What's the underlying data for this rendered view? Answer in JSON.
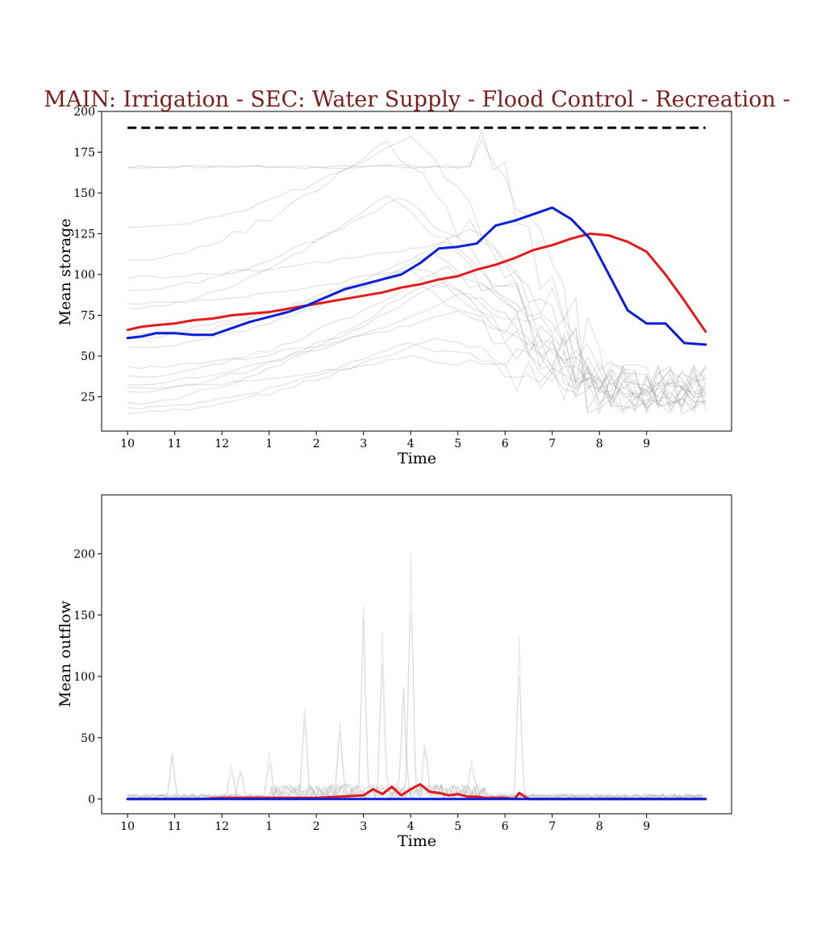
{
  "figure": {
    "title": "MAIN: Irrigation - SEC: Water Supply - Flood Control - Recreation -"
  },
  "chart_data": [
    {
      "type": "line",
      "xlabel": "Time",
      "ylabel": "Mean storage",
      "categories": [
        "10",
        "11",
        "12",
        "1",
        "2",
        "3",
        "4",
        "5",
        "6",
        "7",
        "8",
        "9"
      ],
      "xlim": [
        -0.55,
        12.8
      ],
      "ylim": [
        4,
        200
      ],
      "yticks": [
        25,
        50,
        75,
        100,
        125,
        150,
        175,
        200
      ],
      "grid": false,
      "legend": "none",
      "reference_line": {
        "value": 190,
        "x": [
          0,
          12.25
        ],
        "color": "#000000",
        "style": "dashed"
      },
      "series": [
        {
          "color": "#e41a1c",
          "x": [
            0,
            0.3,
            0.6,
            1.0,
            1.4,
            1.8,
            2.2,
            2.6,
            3.0,
            3.4,
            3.8,
            4.2,
            4.6,
            5.0,
            5.4,
            5.8,
            6.2,
            6.6,
            7.0,
            7.4,
            7.8,
            8.2,
            8.6,
            9.0,
            9.4,
            9.8,
            10.2,
            10.6,
            11.0,
            11.4,
            11.8,
            12.25
          ],
          "values": [
            66,
            68,
            69,
            70,
            72,
            73,
            75,
            76,
            77,
            79,
            81,
            83,
            85,
            87,
            89,
            92,
            94,
            97,
            99,
            103,
            106,
            110,
            115,
            118,
            122,
            125,
            124,
            120,
            114,
            100,
            84,
            65
          ]
        },
        {
          "color": "#0a1fd8",
          "x": [
            0,
            0.3,
            0.6,
            1.0,
            1.4,
            1.8,
            2.2,
            2.6,
            3.0,
            3.4,
            3.8,
            4.2,
            4.6,
            5.0,
            5.4,
            5.8,
            6.2,
            6.6,
            7.0,
            7.4,
            7.8,
            8.2,
            8.6,
            9.0,
            9.4,
            9.8,
            10.2,
            10.6,
            11.0,
            11.4,
            11.8,
            12.25
          ],
          "values": [
            61,
            62,
            64,
            64,
            63,
            63,
            67,
            71,
            74,
            77,
            81,
            86,
            91,
            94,
            97,
            100,
            107,
            116,
            117,
            119,
            130,
            133,
            137,
            141,
            134,
            122,
            100,
            78,
            70,
            70,
            58,
            57
          ]
        }
      ]
    },
    {
      "type": "line",
      "xlabel": "Time",
      "ylabel": "Mean outflow",
      "categories": [
        "10",
        "11",
        "12",
        "1",
        "2",
        "3",
        "4",
        "5",
        "6",
        "7",
        "8",
        "9"
      ],
      "xlim": [
        -0.55,
        12.8
      ],
      "ylim": [
        -12,
        248
      ],
      "yticks": [
        0,
        50,
        100,
        150,
        200
      ],
      "grid": false,
      "legend": "none",
      "series": [
        {
          "color": "#e41a1c",
          "x": [
            0,
            0.5,
            1.0,
            1.5,
            2.0,
            2.5,
            3.0,
            3.5,
            4.0,
            4.5,
            5.0,
            5.2,
            5.4,
            5.6,
            5.8,
            6.0,
            6.2,
            6.4,
            6.6,
            6.8,
            7.0,
            7.2,
            7.4,
            7.6,
            7.8,
            8.0,
            8.2,
            8.3,
            8.5,
            9.0,
            10.0,
            11.0,
            12.25
          ],
          "values": [
            0,
            0,
            0,
            0,
            1,
            1,
            1,
            1,
            1,
            2,
            3,
            8,
            4,
            10,
            3,
            8,
            12,
            6,
            5,
            3,
            4,
            2,
            2,
            1,
            1,
            1,
            0,
            5,
            0,
            0,
            0,
            0,
            0
          ]
        },
        {
          "color": "#0a1fd8",
          "x": [
            0,
            6.0,
            12.25
          ],
          "values": [
            0,
            0,
            0
          ]
        }
      ]
    }
  ]
}
